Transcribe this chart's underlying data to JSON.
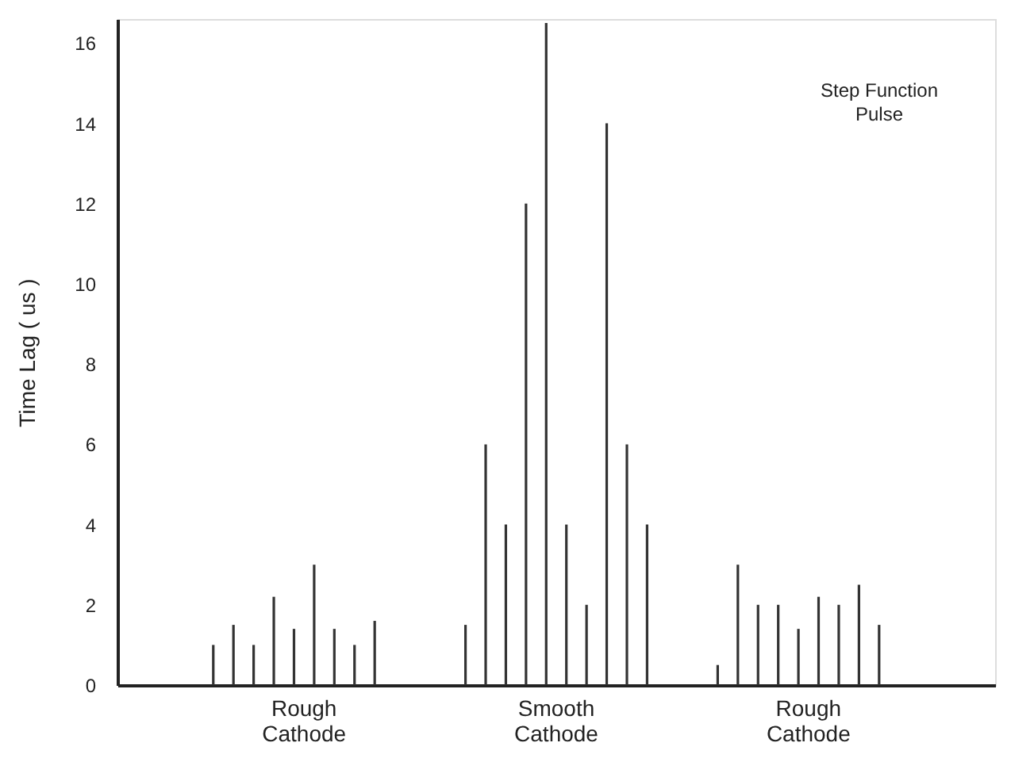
{
  "chart_data": {
    "type": "bar",
    "ylabel": "Time Lag ( us )",
    "categories": [
      "Rough\nCathode",
      "Smooth\nCathode",
      "Rough\nCathode"
    ],
    "series": [
      {
        "color": "#333333",
        "values": [
          1.0,
          1.5,
          0.5
        ]
      },
      {
        "color": "#333333",
        "values": [
          1.5,
          6,
          3
        ]
      },
      {
        "color": "#333333",
        "values": [
          1.0,
          4,
          2
        ]
      },
      {
        "color": "#333333",
        "values": [
          2.2,
          12,
          2
        ]
      },
      {
        "color": "#333333",
        "values": [
          1.4,
          16.5,
          1.4
        ]
      },
      {
        "color": "#333333",
        "values": [
          3.0,
          4,
          2.2
        ]
      },
      {
        "color": "#333333",
        "values": [
          1.4,
          2,
          2
        ]
      },
      {
        "color": "#333333",
        "values": [
          1.0,
          14,
          2.5
        ]
      },
      {
        "color": "#333333",
        "values": [
          1.6,
          6,
          1.5
        ]
      },
      {
        "color": "#333333",
        "values": [
          null,
          4,
          null
        ]
      }
    ],
    "ylim": [
      0,
      16.6
    ],
    "yticks": [
      0,
      2,
      4,
      6,
      8,
      10,
      12,
      14,
      16
    ],
    "grid": false,
    "legend": false,
    "annotations": [
      "Step Function\nPulse"
    ]
  }
}
